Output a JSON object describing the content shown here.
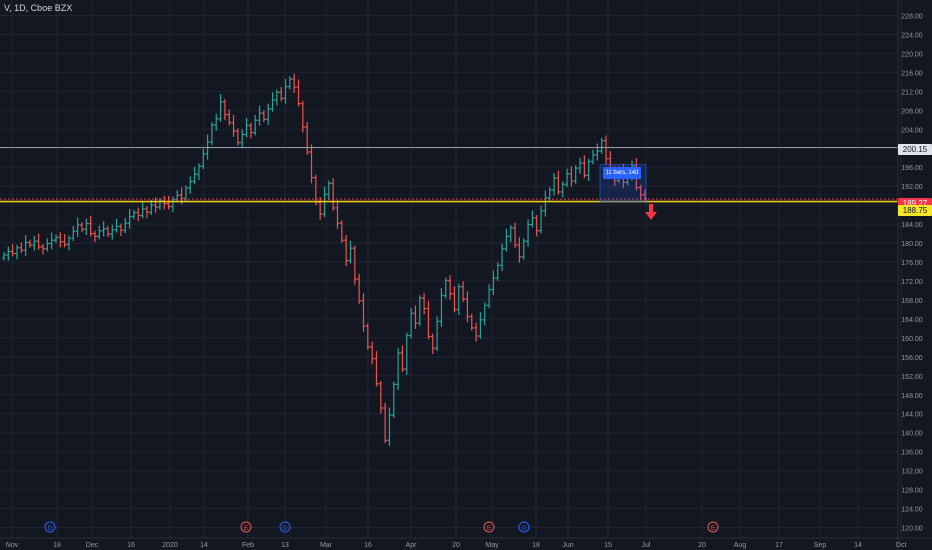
{
  "header": {
    "ticker": "V, 1D, Cboe BZX"
  },
  "colors": {
    "background": "#131722",
    "grid": "#1f2432",
    "up": "#26a69a",
    "down": "#ef5350",
    "resistance_line": "#9598a1",
    "support_line": "#f5c518",
    "annotation": "#2962ff"
  },
  "price_labels": {
    "current_price": "189.27",
    "support_level": "188.75",
    "resistance_level": "200.15"
  },
  "annotation": {
    "text": "11 bars, 14d"
  },
  "event_markers": [
    {
      "letter": "D",
      "label_color": "#2962ff"
    },
    {
      "letter": "E",
      "label_color": "#ef5350"
    },
    {
      "letter": "D",
      "label_color": "#2962ff"
    },
    {
      "letter": "E",
      "label_color": "#ef5350"
    },
    {
      "letter": "D",
      "label_color": "#2962ff"
    },
    {
      "letter": "E",
      "label_color": "#ef5350"
    }
  ],
  "chart_data": {
    "type": "ohlc",
    "y_range": [
      118,
      230
    ],
    "y_ticks": [
      "120.00",
      "124.00",
      "128.00",
      "132.00",
      "136.00",
      "140.00",
      "144.00",
      "148.00",
      "152.00",
      "156.00",
      "160.00",
      "164.00",
      "168.00",
      "172.00",
      "176.00",
      "180.00",
      "184.00",
      "188.00",
      "192.00",
      "196.00",
      "200.00",
      "204.00",
      "208.00",
      "212.00",
      "216.00",
      "220.00",
      "224.00",
      "228.00"
    ],
    "x_ticks": [
      "Nov",
      "18",
      "Dec",
      "16",
      "2020",
      "14",
      "Feb",
      "13",
      "Mar",
      "16",
      "Apr",
      "20",
      "May",
      "18",
      "Jun",
      "15",
      "Jul",
      "20",
      "Aug",
      "17",
      "Sep",
      "14",
      "Oct"
    ],
    "horizontal_lines": [
      {
        "price": 200.15,
        "role": "resistance"
      },
      {
        "price": 188.75,
        "role": "support"
      }
    ],
    "bars_close": [
      177.5,
      178.2,
      177.8,
      179.0,
      178.5,
      180.1,
      179.6,
      180.4,
      179.2,
      178.8,
      179.9,
      180.6,
      181.2,
      180.3,
      179.7,
      181.0,
      182.5,
      183.8,
      182.9,
      184.1,
      182.0,
      181.4,
      182.6,
      183.0,
      181.9,
      182.8,
      183.5,
      182.7,
      184.2,
      185.6,
      186.4,
      185.8,
      187.2,
      186.5,
      188.0,
      187.6,
      188.9,
      188.3,
      187.7,
      189.2,
      190.1,
      189.4,
      191.6,
      193.0,
      194.5,
      196.2,
      198.8,
      201.3,
      204.9,
      206.2,
      209.8,
      207.1,
      205.4,
      203.6,
      201.2,
      202.9,
      204.8,
      203.3,
      205.9,
      207.4,
      206.1,
      208.3,
      210.2,
      211.8,
      210.5,
      213.0,
      214.6,
      212.9,
      209.4,
      204.5,
      199.2,
      193.8,
      188.6,
      186.1,
      190.3,
      192.6,
      187.4,
      184.2,
      180.6,
      176.3,
      178.9,
      172.4,
      167.8,
      162.5,
      158.1,
      155.6,
      150.3,
      145.2,
      138.4,
      143.7,
      150.2,
      156.8,
      153.4,
      160.5,
      165.2,
      163.1,
      168.4,
      166.2,
      160.3,
      157.8,
      163.5,
      168.9,
      172.1,
      169.3,
      166.0,
      170.8,
      168.2,
      164.5,
      162.1,
      160.4,
      163.8,
      166.9,
      170.2,
      172.6,
      175.3,
      178.8,
      181.4,
      183.2,
      179.6,
      177.1,
      180.4,
      183.9,
      185.3,
      182.6,
      186.8,
      189.5,
      191.2,
      193.7,
      190.8,
      192.4,
      194.6,
      193.1,
      195.8,
      196.9,
      194.3,
      197.2,
      198.6,
      199.4,
      201.6,
      197.8,
      195.6,
      193.2,
      195.1,
      192.8,
      194.4,
      196.3,
      191.7,
      190.2,
      189.27
    ]
  }
}
